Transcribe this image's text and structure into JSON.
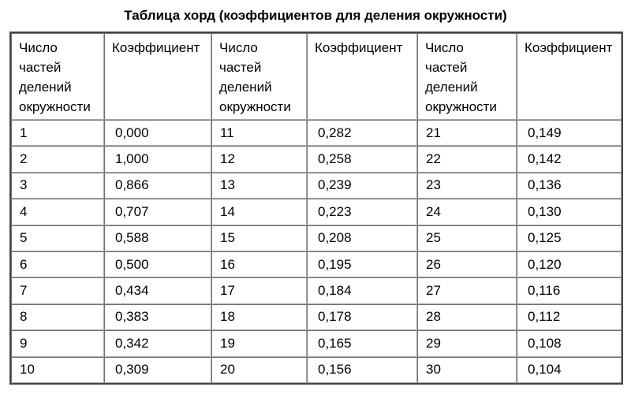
{
  "title": "Таблица хорд (коэффициентов для деления окружности)",
  "table": {
    "headers": {
      "number": "Число\nчастей\nделений\nокружности",
      "coefficient": "Коэффициент"
    },
    "rows": [
      [
        "1",
        "0,000",
        "11",
        "0,282",
        "21",
        "0,149"
      ],
      [
        "2",
        "1,000",
        "12",
        "0,258",
        "22",
        "0,142"
      ],
      [
        "3",
        "0,866",
        "13",
        "0,239",
        "23",
        "0,136"
      ],
      [
        "4",
        "0,707",
        "14",
        "0,223",
        "24",
        "0,130"
      ],
      [
        "5",
        "0,588",
        "15",
        "0,208",
        "25",
        "0,125"
      ],
      [
        "6",
        "0,500",
        "16",
        "0,195",
        "26",
        "0,120"
      ],
      [
        "7",
        "0,434",
        "17",
        "0,184",
        "27",
        "0,116"
      ],
      [
        "8",
        "0,383",
        "18",
        "0,178",
        "28",
        "0,112"
      ],
      [
        "9",
        "0,342",
        "19",
        "0,165",
        "29",
        "0,108"
      ],
      [
        "10",
        "0,309",
        "20",
        "0,156",
        "30",
        "0,104"
      ]
    ]
  }
}
